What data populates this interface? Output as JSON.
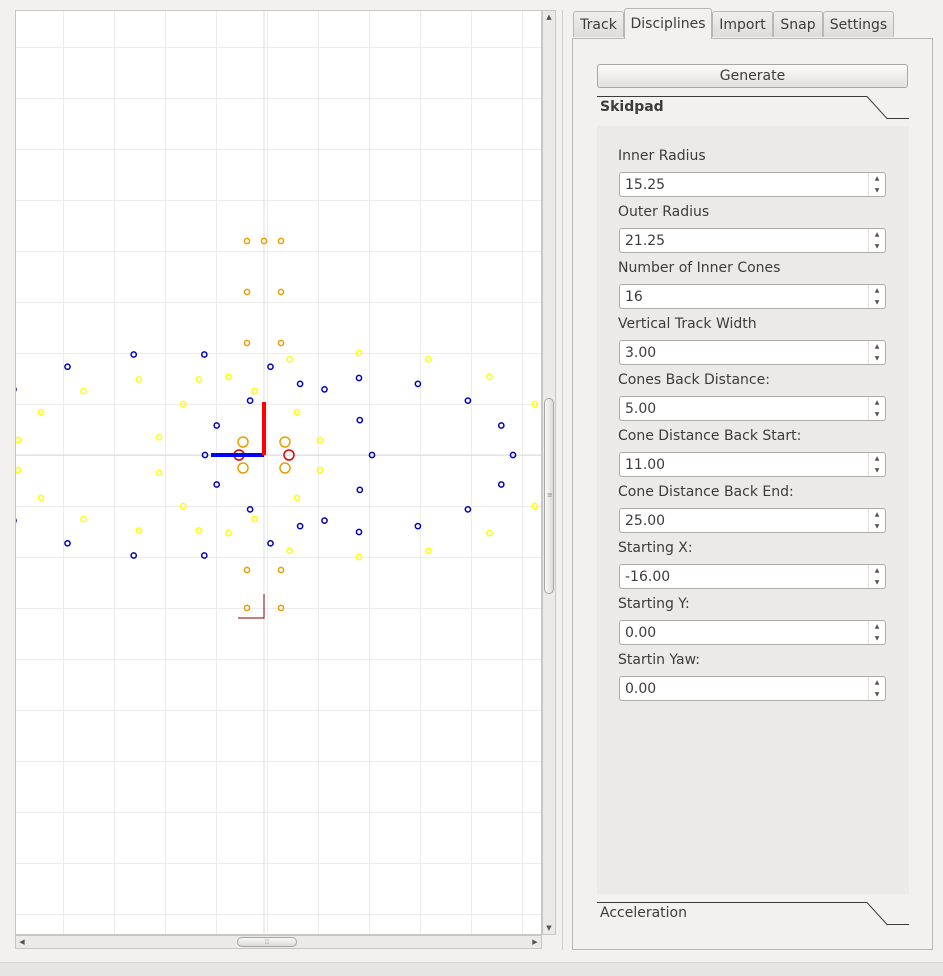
{
  "tabs": [
    "Track",
    "Disciplines",
    "Import",
    "Snap",
    "Settings"
  ],
  "active_tab": "Disciplines",
  "generate_label": "Generate",
  "sections": {
    "skidpad": "Skidpad",
    "acceleration": "Acceleration"
  },
  "fields": [
    {
      "label": "Inner Radius",
      "value": "15.25"
    },
    {
      "label": "Outer Radius",
      "value": "21.25"
    },
    {
      "label": "Number of Inner Cones",
      "value": "16"
    },
    {
      "label": "Vertical Track Width",
      "value": "3.00"
    },
    {
      "label": "Cones Back Distance:",
      "value": "5.00"
    },
    {
      "label": "Cone Distance Back Start:",
      "value": "11.00"
    },
    {
      "label": "Cone Distance Back End:",
      "value": "25.00"
    },
    {
      "label": "Starting X:",
      "value": "-16.00"
    },
    {
      "label": "Starting Y:",
      "value": "0.00"
    },
    {
      "label": "Startin Yaw:",
      "value": "0.00"
    }
  ],
  "icons": {
    "scroll_up": "arrow-up-icon",
    "scroll_down": "arrow-down-icon",
    "scroll_left": "arrow-left-icon",
    "scroll_right": "arrow-right-icon",
    "spin_up": "spin-up-icon",
    "spin_down": "spin-down-icon"
  },
  "cone_colors": {
    "blue": "#0000bb",
    "yellow": "#ffff00",
    "orange": "#e6a000",
    "red": "#dd0000"
  },
  "axis_colors": {
    "x": "#0000ff",
    "y": "#ff0000",
    "marker": "#880000"
  }
}
